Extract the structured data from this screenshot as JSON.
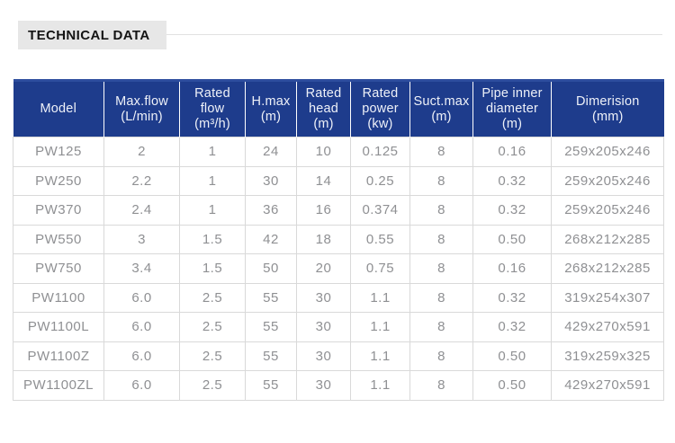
{
  "section": {
    "title": "TECHNICAL DATA"
  },
  "table": {
    "headers": [
      {
        "label": "Model",
        "unit": ""
      },
      {
        "label": "Max.flow",
        "unit": "(L/min)"
      },
      {
        "label": "Rated flow",
        "unit": "(m³/h)"
      },
      {
        "label": "H.max",
        "unit": "(m)"
      },
      {
        "label": "Rated head",
        "unit": "(m)"
      },
      {
        "label": "Rated power",
        "unit": "(kw)"
      },
      {
        "label": "Suct.max",
        "unit": "(m)"
      },
      {
        "label": "Pipe inner diameter",
        "unit": "(m)"
      },
      {
        "label": "Dimerision",
        "unit": "(mm)"
      }
    ],
    "rows": [
      [
        "PW125",
        "2",
        "1",
        "24",
        "10",
        "0.125",
        "8",
        "0.16",
        "259x205x246"
      ],
      [
        "PW250",
        "2.2",
        "1",
        "30",
        "14",
        "0.25",
        "8",
        "0.32",
        "259x205x246"
      ],
      [
        "PW370",
        "2.4",
        "1",
        "36",
        "16",
        "0.374",
        "8",
        "0.32",
        "259x205x246"
      ],
      [
        "PW550",
        "3",
        "1.5",
        "42",
        "18",
        "0.55",
        "8",
        "0.50",
        "268x212x285"
      ],
      [
        "PW750",
        "3.4",
        "1.5",
        "50",
        "20",
        "0.75",
        "8",
        "0.16",
        "268x212x285"
      ],
      [
        "PW1100",
        "6.0",
        "2.5",
        "55",
        "30",
        "1.1",
        "8",
        "0.32",
        "319x254x307"
      ],
      [
        "PW1100L",
        "6.0",
        "2.5",
        "55",
        "30",
        "1.1",
        "8",
        "0.32",
        "429x270x591"
      ],
      [
        "PW1100Z",
        "6.0",
        "2.5",
        "55",
        "30",
        "1.1",
        "8",
        "0.50",
        "319x259x325"
      ],
      [
        "PW1100ZL",
        "6.0",
        "2.5",
        "55",
        "30",
        "1.1",
        "8",
        "0.50",
        "429x270x591"
      ]
    ]
  },
  "colors": {
    "header_bg": "#1e3c8c",
    "header_top_edge": "#2d4d9e",
    "header_text": "#eef1f8",
    "body_text": "#8f9093",
    "grid_border": "#d9d9d9",
    "title_bg": "#e7e7e7",
    "title_text": "#141414",
    "rule": "#e2e2e2"
  }
}
